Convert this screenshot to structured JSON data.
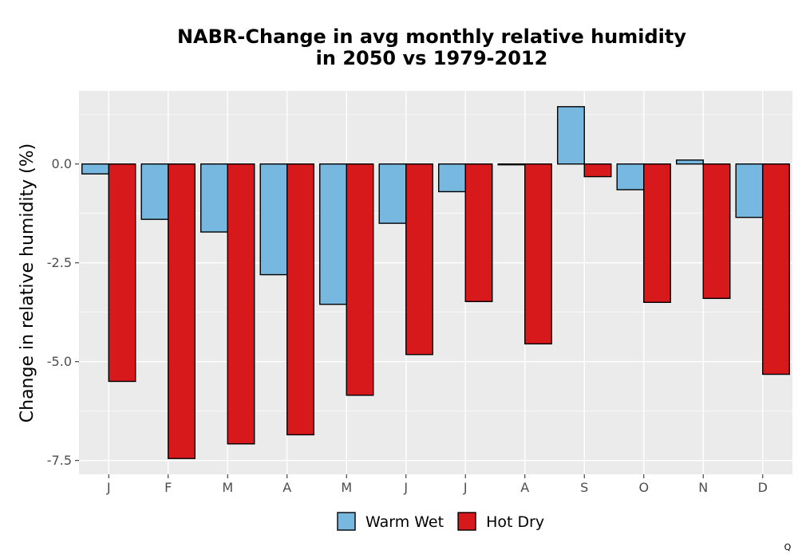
{
  "chart_data": {
    "type": "bar",
    "title": [
      "NABR-Change in avg monthly relative humidity",
      "in 2050 vs 1979-2012"
    ],
    "xlabel": "",
    "ylabel": "Change in relative humidity (%)",
    "categories": [
      "J",
      "F",
      "M",
      "A",
      "M",
      "J",
      "J",
      "A",
      "S",
      "O",
      "N",
      "D"
    ],
    "series": [
      {
        "name": "Warm Wet",
        "color": "#77b8e0",
        "values": [
          -0.25,
          -1.4,
          -1.72,
          -2.8,
          -3.55,
          -1.5,
          -0.7,
          -0.02,
          1.45,
          -0.65,
          0.1,
          -1.35
        ]
      },
      {
        "name": "Hot Dry",
        "color": "#d7191c",
        "values": [
          -5.5,
          -7.45,
          -7.08,
          -6.85,
          -5.85,
          -4.82,
          -3.48,
          -4.55,
          -0.32,
          -3.5,
          -3.4,
          -5.32
        ]
      }
    ],
    "ylim": [
      -7.85,
      1.85
    ],
    "yticks": [
      0.0,
      -2.5,
      -5.0,
      -7.5
    ],
    "ytick_labels": [
      "0.0",
      "-2.5",
      "-5.0",
      "-7.5"
    ],
    "grid": true,
    "legend_position": "bottom",
    "panel_color": "#ebebeb"
  },
  "footnote": "Q"
}
